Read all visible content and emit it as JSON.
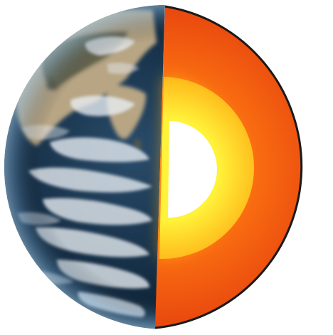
{
  "diagram": {
    "subject": "earth-interior-cutaway",
    "colors": {
      "background": "#ffffff",
      "ocean_dark": "#0e2438",
      "ocean_mid": "#2a4c6b",
      "land_tan": "#b7a584",
      "land_dark": "#5b5a45",
      "cloud": "#e9eef3",
      "rim_blue": "#4d7fa8",
      "outline": "#1a1a1a",
      "mantle_outer": "#e8460e",
      "mantle_inner": "#ff7a12",
      "outer_core_edge": "#ffb81a",
      "outer_core_center": "#fff23a",
      "inner_core": "#ffffff"
    },
    "layers": [
      {
        "name": "mantle"
      },
      {
        "name": "outer-core"
      },
      {
        "name": "inner-core"
      }
    ]
  }
}
